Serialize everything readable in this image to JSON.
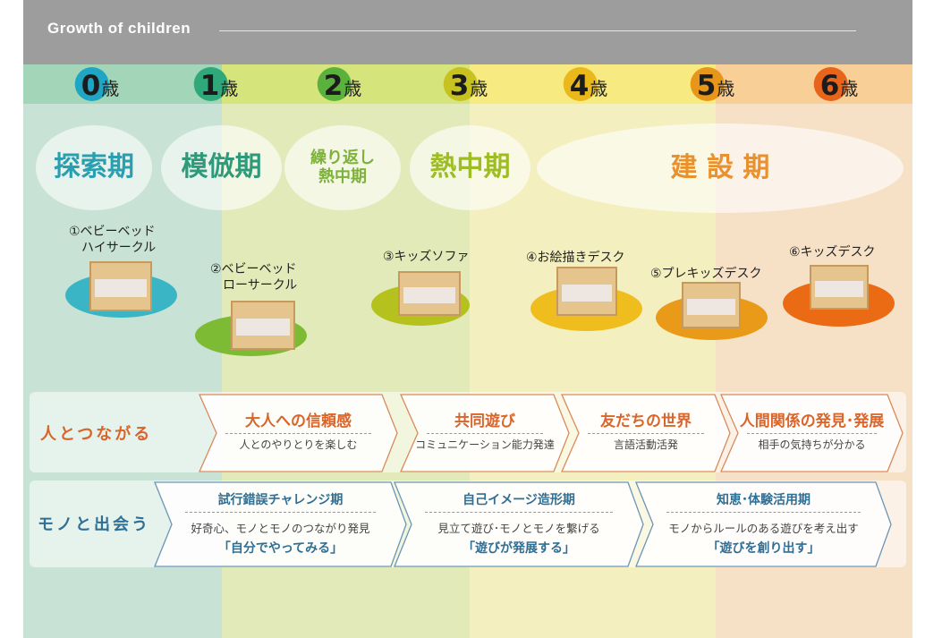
{
  "header": {
    "title": "Growth of children"
  },
  "ages": [
    {
      "num": "0",
      "unit": "歳",
      "color": "#1ea6c4"
    },
    {
      "num": "1",
      "unit": "歳",
      "color": "#2fa87a"
    },
    {
      "num": "2",
      "unit": "歳",
      "color": "#5ab13c"
    },
    {
      "num": "3",
      "unit": "歳",
      "color": "#c7c21f"
    },
    {
      "num": "4",
      "unit": "歳",
      "color": "#eab81a"
    },
    {
      "num": "5",
      "unit": "歳",
      "color": "#e8961a"
    },
    {
      "num": "6",
      "unit": "歳",
      "color": "#e8641a"
    }
  ],
  "stages": [
    {
      "label": "探索期",
      "color": "#2a9fb0"
    },
    {
      "label": "模倣期",
      "color": "#2f9a7a"
    },
    {
      "label": "繰り返し\n熱中期",
      "color": "#7db23a"
    },
    {
      "label": "熱中期",
      "color": "#9ebc23"
    },
    {
      "label": "建 設 期",
      "color": "#e8912e"
    }
  ],
  "products": [
    {
      "label": "①ベビーベッド\n　ハイサークル",
      "color": "#3ab5c6"
    },
    {
      "label": "②ベビーベッド\n　ローサークル",
      "color": "#7dbb34"
    },
    {
      "label": "③キッズソファ",
      "color": "#b5c21e"
    },
    {
      "label": "④お絵描きデスク",
      "color": "#efbd1d"
    },
    {
      "label": "⑤プレキッズデスク",
      "color": "#e99a18"
    },
    {
      "label": "⑥キッズデスク",
      "color": "#ea6b14"
    }
  ],
  "people_row": {
    "label": "人とつながる",
    "color": "#d9652a",
    "items": [
      {
        "title": "大人への信頼感",
        "sub": "人とのやりとりを楽しむ"
      },
      {
        "title": "共同遊び",
        "sub": "コミュニケーション能力発達"
      },
      {
        "title": "友だちの世界",
        "sub": "言語活動活発"
      },
      {
        "title": "人間関係の発見･発展",
        "sub": "相手の気持ちが分かる"
      }
    ]
  },
  "things_row": {
    "label": "モノと出会う",
    "color": "#2f6f95",
    "items": [
      {
        "title": "試行錯誤チャレンジ期",
        "sub": "好奇心、モノとモノのつながり発見",
        "quote": "「自分でやってみる」"
      },
      {
        "title": "自己イメージ造形期",
        "sub": "見立て遊び･モノとモノを繋げる",
        "quote": "「遊びが発展する」"
      },
      {
        "title": "知恵･体験活用期",
        "sub": "モノからルールのある遊びを考え出す",
        "quote": "「遊びを創り出す」"
      }
    ]
  }
}
